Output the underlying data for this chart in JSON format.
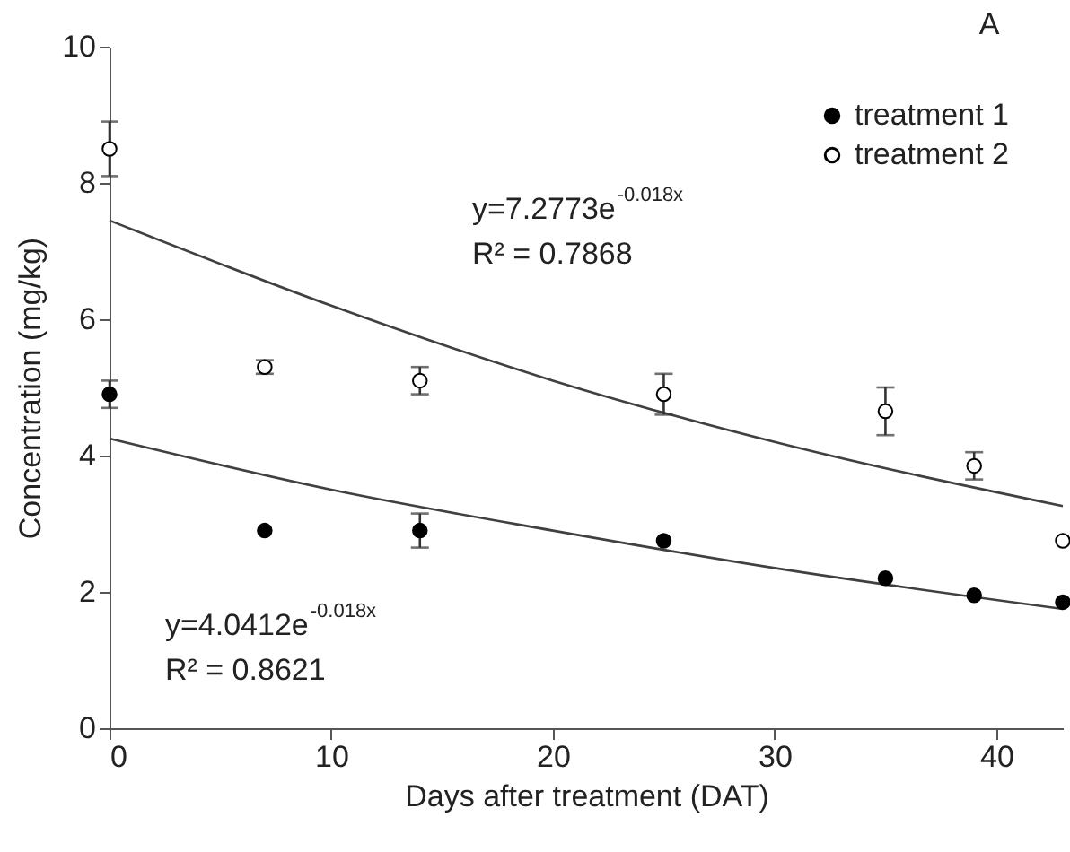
{
  "chart_data": {
    "type": "scatter",
    "xlabel": "Days after treatment (DAT)",
    "ylabel": "Concentration (mg/kg)",
    "annotations": [
      "A",
      "y=7.2773e$^{-0.018x}$",
      "R² = 0.7868",
      "y=4.0412e$^{-0.018x}$",
      "R² = 0.8621"
    ],
    "x": [
      0,
      7,
      14,
      25,
      35,
      39,
      43
    ],
    "series": [
      {
        "name": "treatment 1",
        "color": "#000000",
        "values": [
          4.9,
          2.9,
          2.9,
          2.75,
          2.2,
          1.95,
          1.85
        ],
        "errors": [
          0.2,
          null,
          0.25,
          null,
          null,
          null,
          null
        ]
      },
      {
        "name": "treatment 2",
        "color": "#ffffff",
        "values": [
          8.5,
          5.3,
          5.1,
          4.9,
          4.65,
          3.85,
          2.75
        ],
        "errors": [
          0.4,
          0.1,
          0.2,
          0.3,
          0.35,
          0.2,
          null
        ]
      },
      {
        "type": "line",
        "marker": "none",
        "color": "#404040",
        "x": [
          0,
          10,
          20,
          30,
          43
        ],
        "values": [
          7.45,
          6.2,
          5.1,
          4.2,
          3.26
        ]
      },
      {
        "type": "line",
        "marker": "none",
        "color": "#404040",
        "x": [
          0,
          10,
          20,
          30,
          43
        ],
        "values": [
          4.25,
          3.5,
          2.9,
          2.35,
          1.75
        ]
      }
    ],
    "xlim": [
      0,
      43
    ],
    "xticks": [
      0,
      10,
      20,
      30,
      40
    ],
    "ylim": [
      0,
      10
    ],
    "yticks": [
      0,
      2,
      4,
      6,
      8,
      10
    ],
    "grid": false,
    "legend": "top right",
    "marker": "circle"
  }
}
